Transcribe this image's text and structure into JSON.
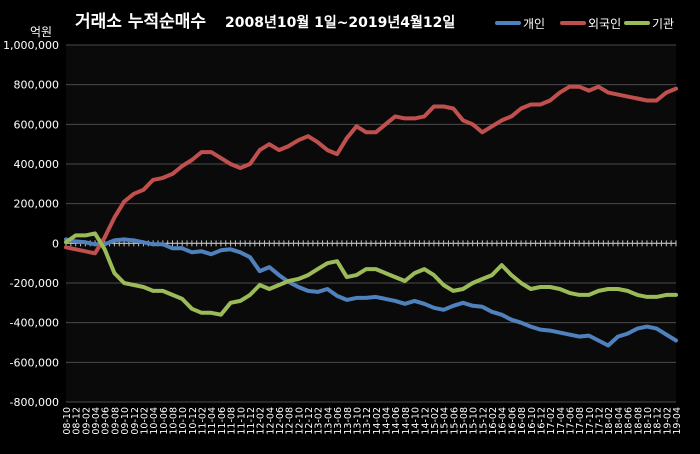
{
  "chart_data": {
    "type": "line",
    "title": "거래소 누적순매수",
    "subtitle": "2008년10월 1일~2019년4월12일",
    "ylabel": "억원",
    "ylim": [
      -800000,
      1000000
    ],
    "y_ticks": [
      1000000,
      800000,
      600000,
      400000,
      200000,
      0,
      -200000,
      -400000,
      -600000,
      -800000
    ],
    "y_tick_labels": [
      "1,000,000",
      "800,000",
      "600,000",
      "400,000",
      "200,000",
      "0",
      "-200,000",
      "-400,000",
      "-600,000",
      "-800,000"
    ],
    "grid": true,
    "legend_position": "top-right",
    "x_tick_labels": [
      "08-10",
      "08-12",
      "09-02",
      "09-04",
      "09-06",
      "09-08",
      "09-10",
      "09-12",
      "10-02",
      "10-04",
      "10-06",
      "10-08",
      "10-10",
      "10-12",
      "11-02",
      "11-04",
      "11-06",
      "11-08",
      "11-10",
      "11-12",
      "12-02",
      "12-04",
      "12-06",
      "12-08",
      "12-10",
      "12-12",
      "13-02",
      "13-04",
      "13-06",
      "13-08",
      "13-10",
      "13-12",
      "14-02",
      "14-04",
      "14-06",
      "14-08",
      "14-10",
      "14-12",
      "15-02",
      "15-04",
      "15-06",
      "15-08",
      "15-10",
      "15-12",
      "16-02",
      "16-04",
      "16-06",
      "16-08",
      "16-10",
      "16-12",
      "17-02",
      "17-04",
      "17-06",
      "17-08",
      "17-10",
      "17-12",
      "18-02",
      "18-04",
      "18-06",
      "18-08",
      "18-10",
      "18-12",
      "19-02",
      "19-04"
    ],
    "series": [
      {
        "name": "개인",
        "color": "#4f81bd",
        "values": [
          20000,
          10000,
          5000,
          -5000,
          -5000,
          15000,
          20000,
          15000,
          5000,
          -5000,
          -5000,
          -25000,
          -25000,
          -45000,
          -40000,
          -55000,
          -35000,
          -30000,
          -45000,
          -70000,
          -140000,
          -120000,
          -160000,
          -195000,
          -220000,
          -240000,
          -245000,
          -230000,
          -265000,
          -285000,
          -275000,
          -275000,
          -270000,
          -280000,
          -290000,
          -305000,
          -290000,
          -305000,
          -325000,
          -335000,
          -315000,
          -300000,
          -315000,
          -320000,
          -345000,
          -360000,
          -385000,
          -400000,
          -420000,
          -435000,
          -440000,
          -450000,
          -460000,
          -470000,
          -465000,
          -490000,
          -515000,
          -470000,
          -455000,
          -430000,
          -420000,
          -430000,
          -460000,
          -490000
        ]
      },
      {
        "name": "외국인",
        "color": "#c0504d",
        "values": [
          -20000,
          -30000,
          -40000,
          -50000,
          30000,
          130000,
          210000,
          250000,
          270000,
          320000,
          330000,
          350000,
          390000,
          420000,
          460000,
          460000,
          430000,
          400000,
          380000,
          400000,
          470000,
          500000,
          470000,
          490000,
          520000,
          540000,
          510000,
          470000,
          450000,
          530000,
          590000,
          560000,
          560000,
          600000,
          640000,
          630000,
          630000,
          640000,
          690000,
          690000,
          680000,
          620000,
          600000,
          560000,
          590000,
          620000,
          640000,
          680000,
          700000,
          700000,
          720000,
          760000,
          790000,
          790000,
          770000,
          790000,
          760000,
          750000,
          740000,
          730000,
          720000,
          720000,
          760000,
          780000
        ]
      },
      {
        "name": "기관",
        "color": "#9bbb59",
        "values": [
          5000,
          40000,
          40000,
          50000,
          -30000,
          -150000,
          -200000,
          -210000,
          -220000,
          -240000,
          -240000,
          -260000,
          -280000,
          -330000,
          -350000,
          -350000,
          -360000,
          -300000,
          -290000,
          -260000,
          -210000,
          -230000,
          -210000,
          -190000,
          -180000,
          -160000,
          -130000,
          -100000,
          -90000,
          -170000,
          -160000,
          -130000,
          -130000,
          -150000,
          -170000,
          -190000,
          -150000,
          -130000,
          -160000,
          -210000,
          -240000,
          -230000,
          -200000,
          -180000,
          -160000,
          -110000,
          -160000,
          -200000,
          -230000,
          -220000,
          -220000,
          -230000,
          -250000,
          -260000,
          -260000,
          -240000,
          -230000,
          -230000,
          -240000,
          -260000,
          -270000,
          -270000,
          -260000,
          -260000
        ]
      }
    ]
  }
}
